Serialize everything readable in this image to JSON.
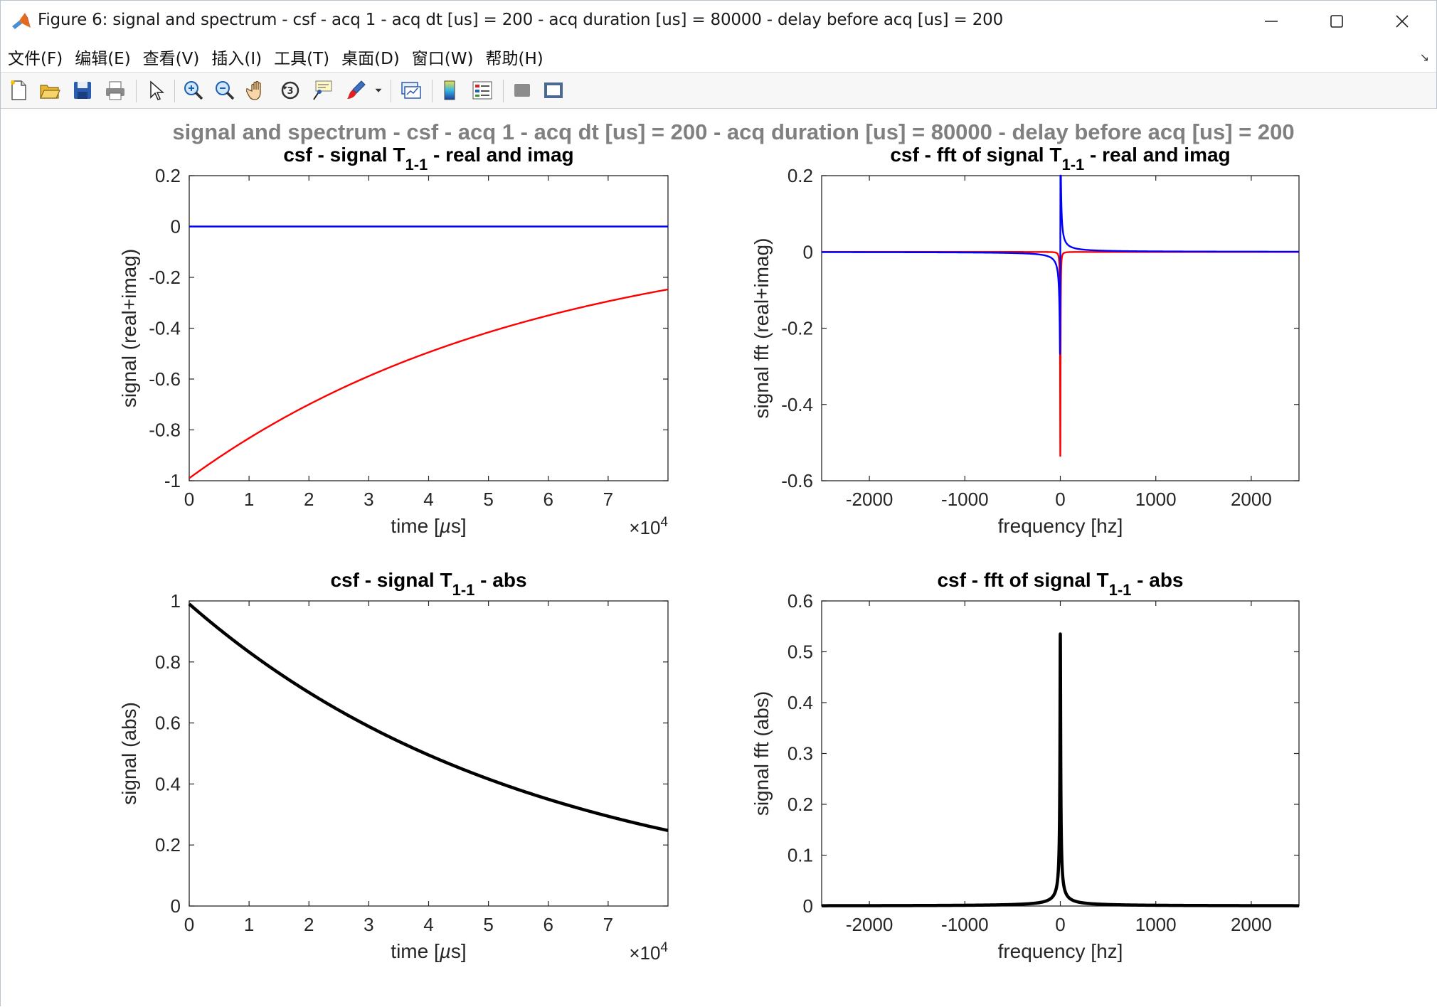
{
  "window": {
    "title": "Figure 6: signal and spectrum - csf - acq 1 - acq dt [us] = 200 - acq duration [us] = 80000 - delay before acq [us] = 200",
    "icon": "matlab-logo-icon",
    "buttons": [
      "minimize-icon",
      "maximize-icon",
      "close-icon"
    ]
  },
  "menu": [
    "文件(F)",
    "编辑(E)",
    "查看(V)",
    "插入(I)",
    "工具(T)",
    "桌面(D)",
    "窗口(W)",
    "帮助(H)"
  ],
  "menu_corner": "↘",
  "toolbar": [
    "new-figure-icon",
    "open-file-icon",
    "save-icon",
    "print-icon",
    "select-pointer-icon",
    "zoom-in-icon",
    "zoom-out-icon",
    "pan-hand-icon",
    "rotate-3d-icon",
    "data-cursor-icon",
    "brush-icon",
    "brush-dropdown-icon",
    "link-plot-icon",
    "insert-colorbar-icon",
    "insert-legend-icon",
    "hide-plot-tools-icon",
    "show-plot-tools-icon"
  ],
  "figure": {
    "suptitle": "signal and spectrum - csf - acq 1 - acq dt [us] = 200 - acq duration [us] = 80000 - delay before acq [us] = 200",
    "colors": {
      "real": "#ff0000",
      "imag": "#0000ff",
      "abs": "#000000",
      "axes": "#262626",
      "suptitle": "#808080"
    }
  },
  "chart_data": [
    {
      "type": "line",
      "title": "csf - signal T1-1 - real and imag",
      "title_parts": {
        "pre": "csf - signal T",
        "sub": "1-1",
        "post": " - real and imag"
      },
      "xlabel": "time [µs]",
      "xlabel_parts": {
        "pre": "time [",
        "mu": "µ",
        "post": "s]"
      },
      "ylabel": "signal (real+imag)",
      "x_multiplier": {
        "base": "×10",
        "exp": "4"
      },
      "xlim": [
        0,
        80000
      ],
      "ylim": [
        -1,
        0.2
      ],
      "xticks": [
        0,
        10000,
        20000,
        30000,
        40000,
        50000,
        60000,
        70000
      ],
      "xtick_labels": [
        "0",
        "1",
        "2",
        "3",
        "4",
        "5",
        "6",
        "7"
      ],
      "yticks": [
        -1,
        -0.8,
        -0.6,
        -0.4,
        -0.2,
        0,
        0.2
      ],
      "ytick_labels": [
        "-1",
        "-0.8",
        "-0.6",
        "-0.4",
        "-0.2",
        "0",
        "0.2"
      ],
      "series": [
        {
          "color": "#ff0000",
          "model": {
            "kind": "exp_decay",
            "amplitude": -0.99,
            "tau_us": 57700
          },
          "x_range": [
            0,
            80000
          ]
        },
        {
          "color": "#0000ff",
          "model": {
            "kind": "constant",
            "value": 0
          },
          "x_range": [
            0,
            80000
          ]
        }
      ]
    },
    {
      "type": "line",
      "title": "csf - fft of signal T1-1 - real and imag",
      "title_parts": {
        "pre": "csf - fft of signal T",
        "sub": "1-1",
        "post": " - real and imag"
      },
      "xlabel": "frequency [hz]",
      "ylabel": "signal fft (real+imag)",
      "xlim": [
        -2500,
        2500
      ],
      "ylim": [
        -0.6,
        0.2
      ],
      "xticks": [
        -2000,
        -1000,
        0,
        1000,
        2000
      ],
      "xtick_labels": [
        "-2000",
        "-1000",
        "0",
        "1000",
        "2000"
      ],
      "yticks": [
        -0.6,
        -0.4,
        -0.2,
        0,
        0.2
      ],
      "ytick_labels": [
        "-0.6",
        "-0.4",
        "-0.2",
        "0",
        "0.2"
      ],
      "series": [
        {
          "color": "#ff0000",
          "model": {
            "kind": "lorentz_real",
            "peak": -0.535,
            "gamma_hz": 2.76
          },
          "x_range": [
            -2500,
            2500
          ]
        },
        {
          "color": "#0000ff",
          "model": {
            "kind": "lorentz_imag",
            "peak": -0.535,
            "gamma_hz": 2.76
          },
          "x_range": [
            -2500,
            2500
          ]
        }
      ]
    },
    {
      "type": "line",
      "title": "csf - signal T1-1 - abs",
      "title_parts": {
        "pre": "csf - signal T",
        "sub": "1-1",
        "post": " - abs"
      },
      "xlabel": "time [µs]",
      "xlabel_parts": {
        "pre": "time [",
        "mu": "µ",
        "post": "s]"
      },
      "ylabel": "signal (abs)",
      "x_multiplier": {
        "base": "×10",
        "exp": "4"
      },
      "xlim": [
        0,
        80000
      ],
      "ylim": [
        0,
        1
      ],
      "xticks": [
        0,
        10000,
        20000,
        30000,
        40000,
        50000,
        60000,
        70000
      ],
      "xtick_labels": [
        "0",
        "1",
        "2",
        "3",
        "4",
        "5",
        "6",
        "7"
      ],
      "yticks": [
        0,
        0.2,
        0.4,
        0.6,
        0.8,
        1
      ],
      "ytick_labels": [
        "0",
        "0.2",
        "0.4",
        "0.6",
        "0.8",
        "1"
      ],
      "series": [
        {
          "color": "#000000",
          "model": {
            "kind": "exp_decay",
            "amplitude": 0.99,
            "tau_us": 57700
          },
          "x_range": [
            0,
            80000
          ]
        }
      ]
    },
    {
      "type": "line",
      "title": "csf - fft of signal T1-1 - abs",
      "title_parts": {
        "pre": "csf - fft of signal T",
        "sub": "1-1",
        "post": " - abs"
      },
      "xlabel": "frequency [hz]",
      "ylabel": "signal fft (abs)",
      "xlim": [
        -2500,
        2500
      ],
      "ylim": [
        0,
        0.6
      ],
      "xticks": [
        -2000,
        -1000,
        0,
        1000,
        2000
      ],
      "xtick_labels": [
        "-2000",
        "-1000",
        "0",
        "1000",
        "2000"
      ],
      "yticks": [
        0,
        0.1,
        0.2,
        0.3,
        0.4,
        0.5,
        0.6
      ],
      "ytick_labels": [
        "0",
        "0.1",
        "0.2",
        "0.3",
        "0.4",
        "0.5",
        "0.6"
      ],
      "series": [
        {
          "color": "#000000",
          "model": {
            "kind": "lorentz_abs",
            "peak": 0.535,
            "gamma_hz": 2.76
          },
          "x_range": [
            -2500,
            2500
          ]
        }
      ]
    }
  ]
}
